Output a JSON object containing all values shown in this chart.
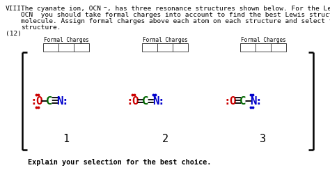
{
  "bg_color": "#ffffff",
  "red": "#cc0000",
  "blue": "#0000cc",
  "green": "#006600",
  "black": "#000000",
  "formal_charges_label": "Formal Charges",
  "structure_numbers": [
    "1",
    "2",
    "3"
  ],
  "bottom_text": "Explain your selection for the best choice."
}
